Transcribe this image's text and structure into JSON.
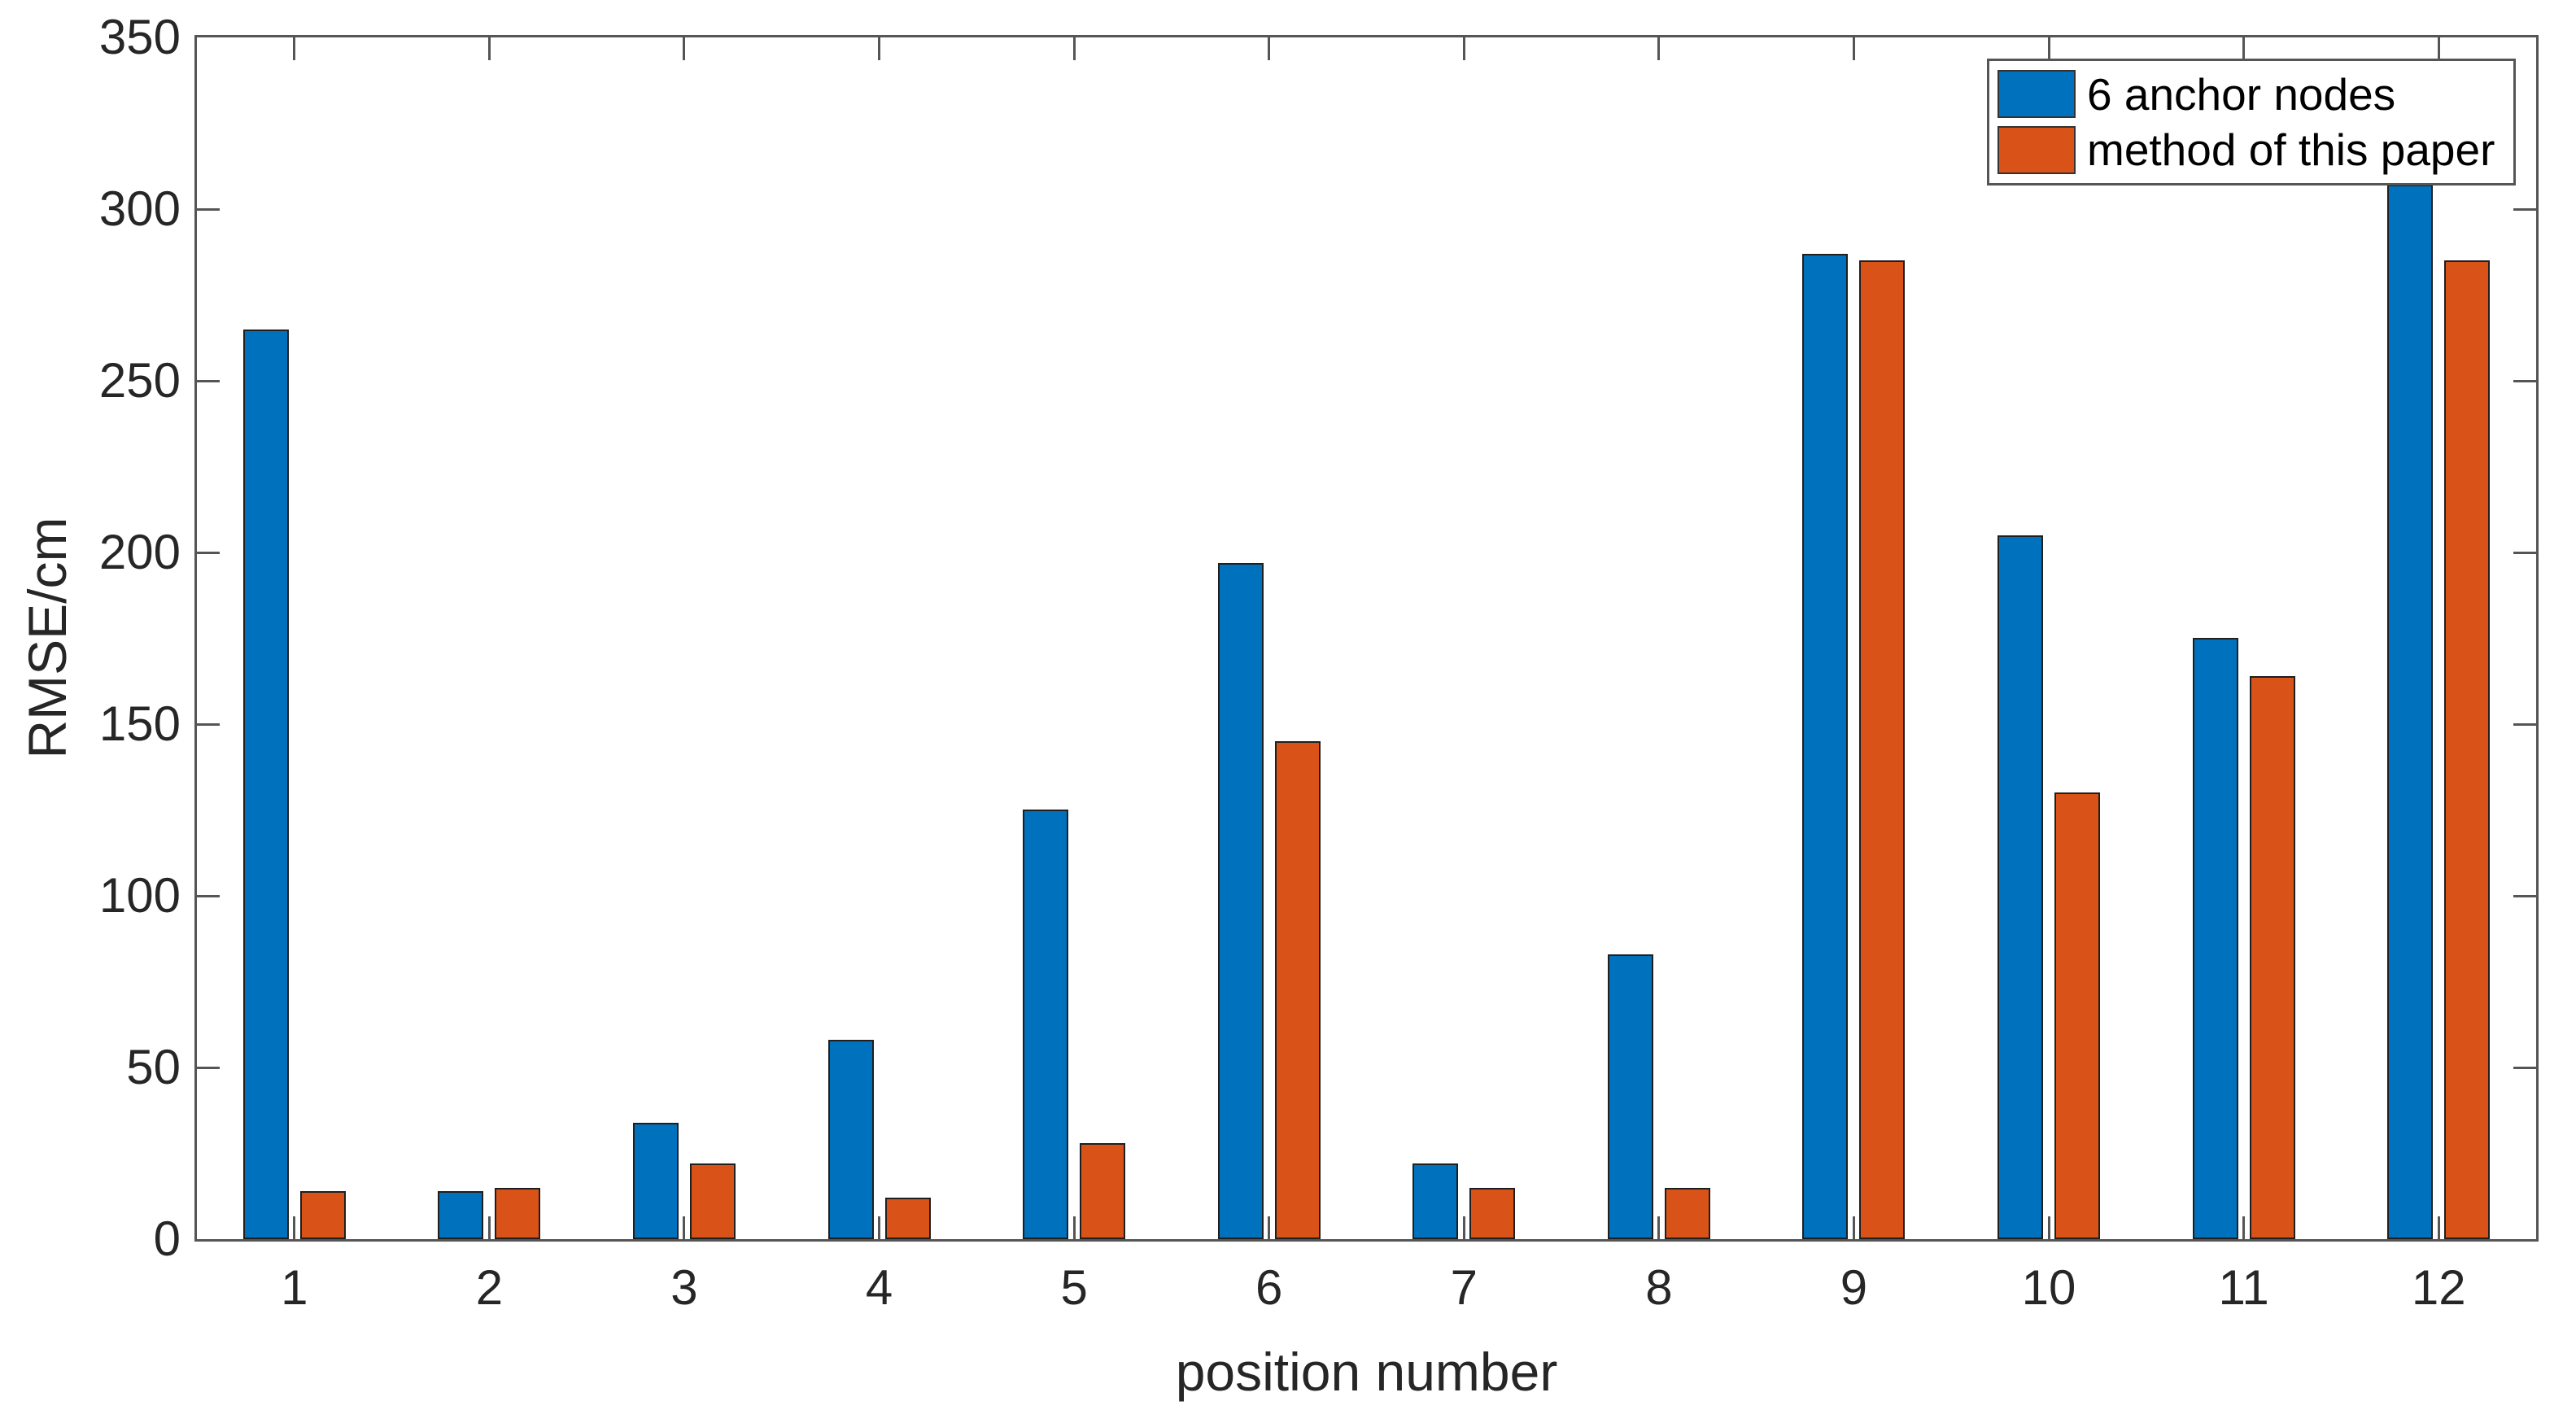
{
  "chart_data": {
    "type": "bar",
    "title": "",
    "xlabel": "position number",
    "ylabel": "RMSE/cm",
    "categories": [
      "1",
      "2",
      "3",
      "4",
      "5",
      "6",
      "7",
      "8",
      "9",
      "10",
      "11",
      "12"
    ],
    "series": [
      {
        "name": "6 anchor nodes",
        "color": "#0072BD",
        "values": [
          265,
          14,
          34,
          58,
          125,
          197,
          22,
          83,
          287,
          205,
          175,
          307
        ]
      },
      {
        "name": "method of this paper",
        "color": "#D95319",
        "values": [
          14,
          15,
          22,
          12,
          28,
          145,
          15,
          15,
          285,
          130,
          164,
          285
        ]
      }
    ],
    "ylim": [
      0,
      350
    ],
    "y_ticks": [
      0,
      50,
      100,
      150,
      200,
      250,
      300,
      350
    ],
    "grid": false,
    "legend_position": "top-right",
    "axis_color": "#555555",
    "text_color": "#262626"
  }
}
